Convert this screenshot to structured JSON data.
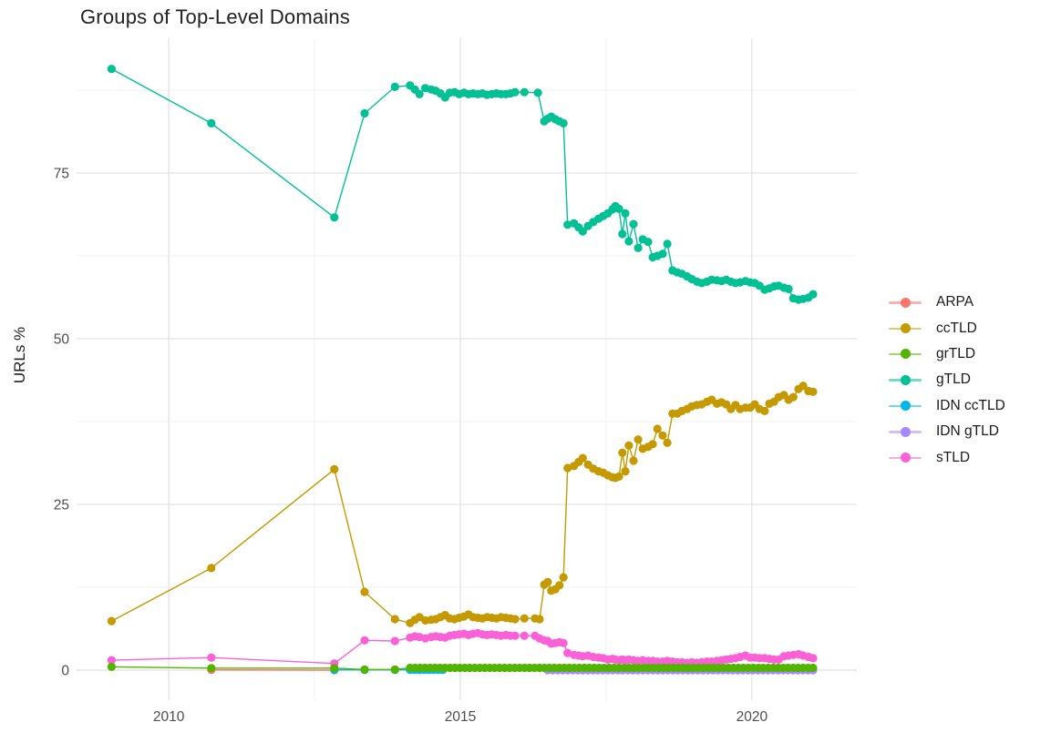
{
  "chart_data": {
    "type": "line",
    "title": "Groups of Top-Level Domains",
    "xlabel": "",
    "ylabel": "URLs %",
    "xlim": [
      2008.42,
      2021.8
    ],
    "ylim": [
      -4.53,
      95.33
    ],
    "grid": true,
    "legend_position": "right",
    "x_ticks": [
      {
        "value": 2010,
        "label": "2010"
      },
      {
        "value": 2015,
        "label": "2015"
      },
      {
        "value": 2020,
        "label": "2020"
      }
    ],
    "x_minor_ticks": [
      2012.5,
      2017.5
    ],
    "y_ticks": [
      {
        "value": 0,
        "label": "0"
      },
      {
        "value": 25,
        "label": "25"
      },
      {
        "value": 50,
        "label": "50"
      },
      {
        "value": 75,
        "label": "75"
      }
    ],
    "y_minor_ticks": [
      12.5,
      37.5,
      62.5,
      87.5
    ],
    "series": [
      {
        "name": "ARPA",
        "color": "#F8766D",
        "z": 0,
        "points": [
          [
            2010.73,
            0.05
          ],
          [
            2012.84,
            0.0
          ]
        ]
      },
      {
        "name": "ccTLD",
        "color": "#C49A00",
        "z": 3,
        "points": [
          [
            2009.02,
            7.4
          ],
          [
            2010.73,
            15.4
          ],
          [
            2012.84,
            30.3
          ],
          [
            2013.36,
            11.8
          ],
          [
            2013.88,
            7.7
          ],
          [
            2014.14,
            7.1
          ],
          [
            2014.22,
            7.6
          ],
          [
            2014.3,
            8.0
          ],
          [
            2014.4,
            7.5
          ],
          [
            2014.5,
            7.6
          ],
          [
            2014.58,
            7.7
          ],
          [
            2014.66,
            8.0
          ],
          [
            2014.74,
            8.3
          ],
          [
            2014.82,
            7.8
          ],
          [
            2014.9,
            7.7
          ],
          [
            2014.98,
            7.9
          ],
          [
            2015.06,
            8.1
          ],
          [
            2015.14,
            8.4
          ],
          [
            2015.22,
            8.0
          ],
          [
            2015.3,
            7.9
          ],
          [
            2015.38,
            7.8
          ],
          [
            2015.46,
            8.0
          ],
          [
            2015.54,
            7.9
          ],
          [
            2015.62,
            7.8
          ],
          [
            2015.7,
            8.0
          ],
          [
            2015.78,
            7.9
          ],
          [
            2015.86,
            7.8
          ],
          [
            2015.94,
            7.7
          ],
          [
            2016.1,
            7.8
          ],
          [
            2016.28,
            7.8
          ],
          [
            2016.36,
            7.7
          ],
          [
            2016.44,
            12.9
          ],
          [
            2016.5,
            13.3
          ],
          [
            2016.56,
            12.0
          ],
          [
            2016.63,
            12.2
          ],
          [
            2016.7,
            12.8
          ],
          [
            2016.77,
            14.0
          ],
          [
            2016.84,
            30.5
          ],
          [
            2016.95,
            30.8
          ],
          [
            2017.03,
            31.4
          ],
          [
            2017.1,
            32.0
          ],
          [
            2017.19,
            31.0
          ],
          [
            2017.28,
            30.4
          ],
          [
            2017.37,
            30.0
          ],
          [
            2017.45,
            29.8
          ],
          [
            2017.53,
            29.4
          ],
          [
            2017.61,
            29.1
          ],
          [
            2017.66,
            29.0
          ],
          [
            2017.72,
            29.2
          ],
          [
            2017.78,
            32.8
          ],
          [
            2017.83,
            30.0
          ],
          [
            2017.89,
            33.9
          ],
          [
            2017.97,
            31.6
          ],
          [
            2018.05,
            34.8
          ],
          [
            2018.13,
            33.4
          ],
          [
            2018.22,
            33.7
          ],
          [
            2018.3,
            34.1
          ],
          [
            2018.38,
            36.4
          ],
          [
            2018.47,
            35.4
          ],
          [
            2018.55,
            34.3
          ],
          [
            2018.64,
            38.7
          ],
          [
            2018.72,
            38.7
          ],
          [
            2018.8,
            39.1
          ],
          [
            2018.89,
            39.4
          ],
          [
            2018.97,
            39.8
          ],
          [
            2019.06,
            40.0
          ],
          [
            2019.14,
            40.1
          ],
          [
            2019.23,
            40.5
          ],
          [
            2019.31,
            40.8
          ],
          [
            2019.4,
            40.2
          ],
          [
            2019.48,
            40.4
          ],
          [
            2019.56,
            40.1
          ],
          [
            2019.64,
            39.4
          ],
          [
            2019.72,
            40.0
          ],
          [
            2019.8,
            39.4
          ],
          [
            2019.89,
            39.6
          ],
          [
            2019.97,
            39.6
          ],
          [
            2020.05,
            40.1
          ],
          [
            2020.13,
            39.4
          ],
          [
            2020.22,
            39.1
          ],
          [
            2020.3,
            40.2
          ],
          [
            2020.38,
            40.5
          ],
          [
            2020.46,
            41.2
          ],
          [
            2020.55,
            41.5
          ],
          [
            2020.63,
            40.8
          ],
          [
            2020.71,
            41.2
          ],
          [
            2020.8,
            42.4
          ],
          [
            2020.88,
            42.9
          ],
          [
            2020.97,
            42.1
          ],
          [
            2021.05,
            42.0
          ]
        ]
      },
      {
        "name": "grTLD",
        "color": "#53B400",
        "z": 6,
        "points": [
          [
            2009.02,
            0.5
          ],
          [
            2010.73,
            0.3
          ],
          [
            2012.84,
            0.3
          ],
          [
            2013.36,
            0.1
          ],
          [
            2013.88,
            0.1
          ]
        ],
        "row": {
          "from": 2014.14,
          "to": 2021.05,
          "count": 82,
          "value": 0.35
        }
      },
      {
        "name": "gTLD",
        "color": "#00C094",
        "z": 4,
        "points": [
          [
            2009.02,
            90.7
          ],
          [
            2010.73,
            82.5
          ],
          [
            2012.84,
            68.3
          ],
          [
            2013.36,
            84.0
          ],
          [
            2013.88,
            88.0
          ],
          [
            2014.14,
            88.2
          ],
          [
            2014.22,
            87.6
          ],
          [
            2014.3,
            86.9
          ],
          [
            2014.4,
            87.8
          ],
          [
            2014.5,
            87.6
          ],
          [
            2014.58,
            87.4
          ],
          [
            2014.66,
            87.0
          ],
          [
            2014.74,
            86.4
          ],
          [
            2014.82,
            87.1
          ],
          [
            2014.9,
            87.2
          ],
          [
            2014.98,
            86.9
          ],
          [
            2015.06,
            87.1
          ],
          [
            2015.14,
            86.9
          ],
          [
            2015.22,
            87.0
          ],
          [
            2015.3,
            86.9
          ],
          [
            2015.38,
            87.0
          ],
          [
            2015.46,
            86.8
          ],
          [
            2015.54,
            86.9
          ],
          [
            2015.62,
            87.0
          ],
          [
            2015.7,
            86.9
          ],
          [
            2015.78,
            86.9
          ],
          [
            2015.86,
            87.0
          ],
          [
            2015.94,
            87.2
          ],
          [
            2016.1,
            87.2
          ],
          [
            2016.33,
            87.1
          ],
          [
            2016.44,
            82.8
          ],
          [
            2016.5,
            83.2
          ],
          [
            2016.56,
            83.5
          ],
          [
            2016.63,
            83.1
          ],
          [
            2016.7,
            82.8
          ],
          [
            2016.77,
            82.5
          ],
          [
            2016.84,
            67.2
          ],
          [
            2016.95,
            67.4
          ],
          [
            2017.03,
            66.8
          ],
          [
            2017.1,
            66.2
          ],
          [
            2017.19,
            67.0
          ],
          [
            2017.28,
            67.6
          ],
          [
            2017.37,
            68.1
          ],
          [
            2017.45,
            68.5
          ],
          [
            2017.53,
            68.9
          ],
          [
            2017.61,
            69.5
          ],
          [
            2017.66,
            70.0
          ],
          [
            2017.72,
            69.6
          ],
          [
            2017.78,
            65.8
          ],
          [
            2017.83,
            68.9
          ],
          [
            2017.89,
            64.7
          ],
          [
            2017.97,
            67.3
          ],
          [
            2018.05,
            63.7
          ],
          [
            2018.13,
            65.0
          ],
          [
            2018.22,
            64.6
          ],
          [
            2018.3,
            62.3
          ],
          [
            2018.38,
            62.5
          ],
          [
            2018.47,
            62.8
          ],
          [
            2018.55,
            64.3
          ],
          [
            2018.64,
            60.3
          ],
          [
            2018.72,
            60.0
          ],
          [
            2018.8,
            59.8
          ],
          [
            2018.89,
            59.4
          ],
          [
            2018.97,
            59.0
          ],
          [
            2019.06,
            58.6
          ],
          [
            2019.14,
            58.4
          ],
          [
            2019.23,
            58.6
          ],
          [
            2019.31,
            58.9
          ],
          [
            2019.4,
            58.8
          ],
          [
            2019.48,
            58.7
          ],
          [
            2019.56,
            58.9
          ],
          [
            2019.64,
            58.6
          ],
          [
            2019.72,
            58.4
          ],
          [
            2019.8,
            58.5
          ],
          [
            2019.89,
            58.7
          ],
          [
            2019.97,
            58.5
          ],
          [
            2020.05,
            58.4
          ],
          [
            2020.13,
            58.0
          ],
          [
            2020.22,
            57.4
          ],
          [
            2020.3,
            57.6
          ],
          [
            2020.38,
            57.9
          ],
          [
            2020.46,
            58.0
          ],
          [
            2020.55,
            57.7
          ],
          [
            2020.63,
            57.5
          ],
          [
            2020.71,
            56.1
          ],
          [
            2020.8,
            55.9
          ],
          [
            2020.88,
            56.0
          ],
          [
            2020.97,
            56.2
          ],
          [
            2021.05,
            56.7
          ]
        ]
      },
      {
        "name": "IDN ccTLD",
        "color": "#00B6EB",
        "z": 2,
        "points": [
          [
            2012.84,
            0.05
          ],
          [
            2013.36,
            0.05
          ],
          [
            2013.88,
            0.05
          ]
        ],
        "row": {
          "from": 2014.14,
          "to": 2014.7,
          "count": 8,
          "value": 0.05
        }
      },
      {
        "name": "IDN gTLD",
        "color": "#A58AFF",
        "z": 1,
        "points": [],
        "row": {
          "from": 2016.5,
          "to": 2021.05,
          "count": 54,
          "value": 0.0
        }
      },
      {
        "name": "sTLD",
        "color": "#FB61D7",
        "z": 5,
        "points": [
          [
            2009.02,
            1.5
          ],
          [
            2010.73,
            1.9
          ],
          [
            2012.84,
            1.0
          ],
          [
            2013.36,
            4.5
          ],
          [
            2013.88,
            4.4
          ],
          [
            2014.14,
            4.9
          ],
          [
            2014.22,
            5.1
          ],
          [
            2014.3,
            5.0
          ],
          [
            2014.4,
            4.8
          ],
          [
            2014.5,
            5.0
          ],
          [
            2014.58,
            5.1
          ],
          [
            2014.66,
            5.0
          ],
          [
            2014.74,
            4.9
          ],
          [
            2014.82,
            5.2
          ],
          [
            2014.9,
            5.3
          ],
          [
            2014.98,
            5.4
          ],
          [
            2015.06,
            5.5
          ],
          [
            2015.14,
            5.3
          ],
          [
            2015.22,
            5.5
          ],
          [
            2015.3,
            5.6
          ],
          [
            2015.38,
            5.4
          ],
          [
            2015.46,
            5.3
          ],
          [
            2015.54,
            5.4
          ],
          [
            2015.62,
            5.3
          ],
          [
            2015.7,
            5.2
          ],
          [
            2015.78,
            5.3
          ],
          [
            2015.86,
            5.2
          ],
          [
            2015.94,
            5.2
          ],
          [
            2016.1,
            5.2
          ],
          [
            2016.28,
            5.2
          ],
          [
            2016.36,
            4.8
          ],
          [
            2016.44,
            4.5
          ],
          [
            2016.5,
            4.4
          ],
          [
            2016.56,
            4.0
          ],
          [
            2016.63,
            4.1
          ],
          [
            2016.7,
            4.2
          ],
          [
            2016.77,
            4.1
          ],
          [
            2016.84,
            2.6
          ],
          [
            2016.95,
            2.3
          ],
          [
            2017.03,
            2.2
          ],
          [
            2017.1,
            2.1
          ],
          [
            2017.19,
            2.2
          ],
          [
            2017.28,
            2.0
          ],
          [
            2017.37,
            1.9
          ],
          [
            2017.45,
            1.8
          ],
          [
            2017.53,
            1.6
          ],
          [
            2017.61,
            1.7
          ],
          [
            2017.66,
            1.6
          ],
          [
            2017.72,
            1.5
          ],
          [
            2017.78,
            1.6
          ],
          [
            2017.83,
            1.5
          ],
          [
            2017.89,
            1.6
          ],
          [
            2017.97,
            1.5
          ],
          [
            2018.05,
            1.4
          ],
          [
            2018.13,
            1.5
          ],
          [
            2018.22,
            1.4
          ],
          [
            2018.3,
            1.4
          ],
          [
            2018.38,
            1.3
          ],
          [
            2018.47,
            1.3
          ],
          [
            2018.55,
            1.4
          ],
          [
            2018.64,
            1.3
          ],
          [
            2018.72,
            1.2
          ],
          [
            2018.8,
            1.2
          ],
          [
            2018.89,
            1.1
          ],
          [
            2018.97,
            1.2
          ],
          [
            2019.06,
            1.1
          ],
          [
            2019.14,
            1.2
          ],
          [
            2019.23,
            1.3
          ],
          [
            2019.31,
            1.3
          ],
          [
            2019.4,
            1.4
          ],
          [
            2019.48,
            1.5
          ],
          [
            2019.56,
            1.6
          ],
          [
            2019.64,
            1.7
          ],
          [
            2019.72,
            1.8
          ],
          [
            2019.8,
            2.0
          ],
          [
            2019.89,
            2.2
          ],
          [
            2019.97,
            1.9
          ],
          [
            2020.05,
            1.9
          ],
          [
            2020.13,
            1.8
          ],
          [
            2020.22,
            1.8
          ],
          [
            2020.3,
            1.7
          ],
          [
            2020.38,
            1.6
          ],
          [
            2020.46,
            1.6
          ],
          [
            2020.55,
            2.1
          ],
          [
            2020.63,
            2.2
          ],
          [
            2020.71,
            2.3
          ],
          [
            2020.8,
            2.4
          ],
          [
            2020.88,
            2.2
          ],
          [
            2020.97,
            2.0
          ],
          [
            2021.05,
            1.8
          ]
        ]
      }
    ],
    "style": {
      "grid_major_color": "#e3e3e3",
      "grid_minor_color": "#f0f0f0",
      "tick_label_color": "#4d4d4d",
      "point_radius": 4.6,
      "line_width": 1.4
    }
  }
}
